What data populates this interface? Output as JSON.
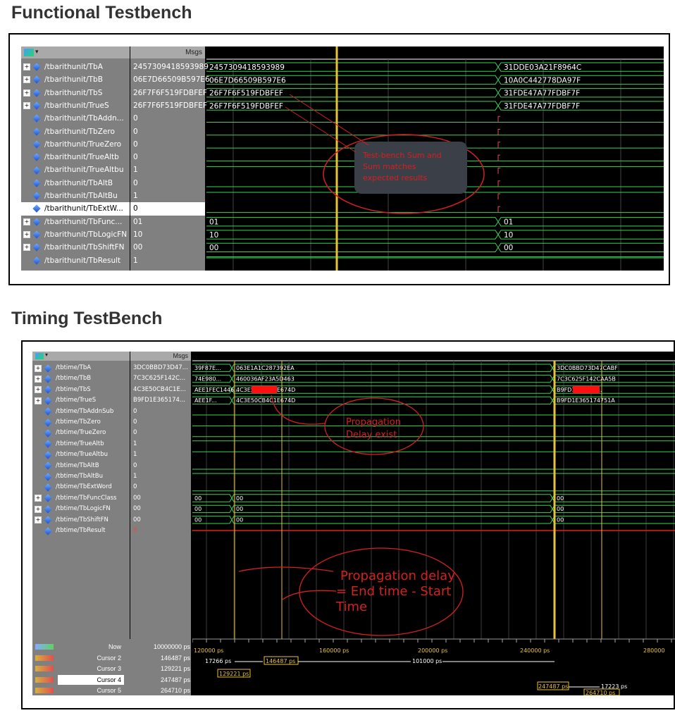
{
  "functional": {
    "title": "Functional Testbench",
    "msgs": "Msgs",
    "signals": [
      {
        "name": "/tbarithunit/TbA",
        "value": "2457309418593989",
        "wave": "2457309418593989",
        "after": "31DDE03A21F8964C",
        "bus": true
      },
      {
        "name": "/tbarithunit/TbB",
        "value": "06E7D66509B597E6",
        "wave": "06E7D66509B597E6",
        "after": "10A0C442778DA97F",
        "bus": true
      },
      {
        "name": "/tbarithunit/TbS",
        "value": "26F7F6F519FDBFEF",
        "wave": "26F7F6F519FDBFEF",
        "after": "31FDE47A77FDBF7F",
        "bus": true
      },
      {
        "name": "/tbarithunit/TrueS",
        "value": "26F7F6F519FDBFEF",
        "wave": "26F7F6F519FDBFEF",
        "after": "31FDE47A77FDBF7F",
        "bus": true
      },
      {
        "name": "/tbarithunit/TbAddn...",
        "value": "0",
        "bus": false
      },
      {
        "name": "/tbarithunit/TbZero",
        "value": "0",
        "bus": false
      },
      {
        "name": "/tbarithunit/TrueZero",
        "value": "0",
        "bus": false
      },
      {
        "name": "/tbarithunit/TrueAltb",
        "value": "0",
        "bus": false
      },
      {
        "name": "/tbarithunit/TrueAltbu",
        "value": "1",
        "bus": false
      },
      {
        "name": "/tbarithunit/TbAltB",
        "value": "0",
        "bus": false
      },
      {
        "name": "/tbarithunit/TbAltBu",
        "value": "1",
        "bus": false
      },
      {
        "name": "/tbarithunit/TbExtW...",
        "value": "0",
        "bus": false,
        "selected": true
      },
      {
        "name": "/tbarithunit/TbFunc...",
        "value": "01",
        "wave": "01",
        "after": "01",
        "bus": true
      },
      {
        "name": "/tbarithunit/TbLogicFN",
        "value": "10",
        "wave": "10",
        "after": "10",
        "bus": true
      },
      {
        "name": "/tbarithunit/TbShiftFN",
        "value": "00",
        "wave": "00",
        "after": "00",
        "bus": true
      },
      {
        "name": "/tbarithunit/TbResult",
        "value": "1",
        "bus": false
      }
    ],
    "annotation": "Test-bench Sum and Sum matches expected results"
  },
  "timing": {
    "title": "Timing TestBench",
    "msgs": "Msgs",
    "signals": [
      {
        "name": "/tbtime/TbA",
        "value": "3DC0BBD73D47...",
        "w1": "39F87E...",
        "w2": "063E1A1C287392EA",
        "w3": "3DC0BBD73D47CABF",
        "bus": true
      },
      {
        "name": "/tbtime/TbB",
        "value": "7C3C625F142C...",
        "w1": "74E980...",
        "w2": "460036AF23A5D463",
        "w3": "7C3C625F142CAA5B",
        "bus": true
      },
      {
        "name": "/tbtime/TbS",
        "value": "4C3E50CB4C1E...",
        "w1": "AEE1FEC1446...",
        "w2": "4C3E50CB4C1E674D",
        "w3": "B9FD1E36517...",
        "bus": true
      },
      {
        "name": "/tbtime/TrueS",
        "value": "B9FD1E365174...",
        "w1": "AEE1F...",
        "w2": "4C3E50CB4C1E674D",
        "w3": "B9FD1E365174751A",
        "bus": true
      },
      {
        "name": "/tbtime/TbAddnSub",
        "value": "0",
        "bus": false
      },
      {
        "name": "/tbtime/TbZero",
        "value": "0",
        "bus": false
      },
      {
        "name": "/tbtime/TrueZero",
        "value": "0",
        "bus": false
      },
      {
        "name": "/tbtime/TrueAltb",
        "value": "1",
        "bus": false
      },
      {
        "name": "/tbtime/TrueAltbu",
        "value": "1",
        "bus": false
      },
      {
        "name": "/tbtime/TbAltB",
        "value": "0",
        "bus": false
      },
      {
        "name": "/tbtime/TbAltBu",
        "value": "1",
        "bus": false
      },
      {
        "name": "/tbtime/TbExtWord",
        "value": "0",
        "bus": false
      },
      {
        "name": "/tbtime/TbFuncClass",
        "value": "00",
        "w1": "00",
        "w2": "00",
        "w3": "00",
        "bus": true
      },
      {
        "name": "/tbtime/TbLogicFN",
        "value": "00",
        "w1": "00",
        "w2": "00",
        "w3": "00",
        "bus": true
      },
      {
        "name": "/tbtime/TbShiftFN",
        "value": "00",
        "w1": "00",
        "w2": "00",
        "w3": "00",
        "bus": true
      },
      {
        "name": "/tbtime/TbResult",
        "value": "X",
        "bus": false,
        "x": true
      }
    ],
    "annotation1": "Propagation Delay exist",
    "annotation2": "Propagation delay = End time - Start Time",
    "timeline": [
      "120000 ps",
      "160000 ps",
      "200000 ps",
      "240000 ps",
      "280000"
    ],
    "cursors": [
      {
        "label": "Now",
        "value": "10000000 ps"
      },
      {
        "label": "Cursor 2",
        "value": "146487 ps"
      },
      {
        "label": "Cursor 3",
        "value": "129221 ps"
      },
      {
        "label": "Cursor 4",
        "value": "247487 ps",
        "selected": true
      },
      {
        "label": "Cursor 5",
        "value": "264710 ps"
      }
    ],
    "cursor_marks": {
      "c2": "146487 ps",
      "c3": "129221 ps",
      "c4": "247487 ps",
      "c5": "264710 ps",
      "d1": "17266 ps",
      "d2": "101000 ps",
      "d3": "17223 ps"
    }
  },
  "colors": {
    "wave": "#39d353",
    "bus": "#39d353",
    "cursor": "#e8c238",
    "annot": "#d42020",
    "highlight": "#ff1010"
  }
}
